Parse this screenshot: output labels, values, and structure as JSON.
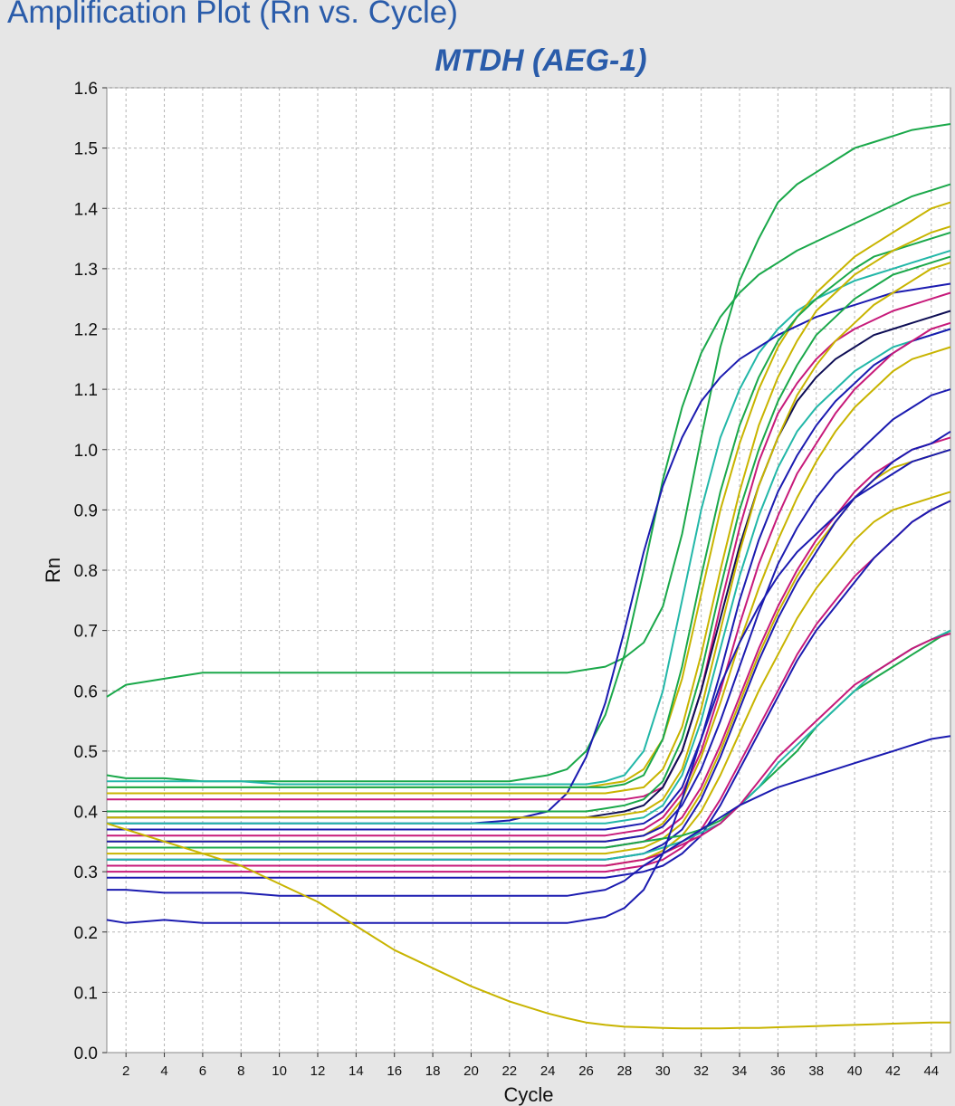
{
  "window": {
    "title": "Amplification Plot (Rn vs. Cycle)"
  },
  "chart_data": {
    "type": "line",
    "title": "MTDH (AEG-1)",
    "xlabel": "Cycle",
    "ylabel": "Rn",
    "xlim": [
      1,
      45
    ],
    "ylim": [
      0.0,
      1.6
    ],
    "x_ticks": [
      2,
      4,
      6,
      8,
      10,
      12,
      14,
      16,
      18,
      20,
      22,
      24,
      26,
      28,
      30,
      32,
      34,
      36,
      38,
      40,
      42,
      44
    ],
    "y_ticks": [
      0.0,
      0.1,
      0.2,
      0.3,
      0.4,
      0.5,
      0.6,
      0.7,
      0.8,
      0.9,
      1.0,
      1.1,
      1.2,
      1.3,
      1.4,
      1.5,
      1.6
    ],
    "grid": true,
    "legend": "none",
    "x": [
      1,
      2,
      4,
      6,
      8,
      10,
      12,
      14,
      16,
      18,
      20,
      22,
      24,
      25,
      26,
      27,
      28,
      29,
      30,
      31,
      32,
      33,
      34,
      35,
      36,
      37,
      38,
      39,
      40,
      41,
      42,
      43,
      44,
      45
    ],
    "series": [
      {
        "color": "#1aa84a",
        "values": [
          0.59,
          0.61,
          0.62,
          0.63,
          0.63,
          0.63,
          0.63,
          0.63,
          0.63,
          0.63,
          0.63,
          0.63,
          0.63,
          0.63,
          0.635,
          0.64,
          0.655,
          0.68,
          0.74,
          0.86,
          1.02,
          1.17,
          1.28,
          1.35,
          1.41,
          1.44,
          1.46,
          1.48,
          1.5,
          1.51,
          1.52,
          1.53,
          1.535,
          1.54
        ]
      },
      {
        "color": "#1aa84a",
        "values": [
          0.46,
          0.455,
          0.455,
          0.45,
          0.45,
          0.45,
          0.45,
          0.45,
          0.45,
          0.45,
          0.45,
          0.45,
          0.46,
          0.47,
          0.5,
          0.56,
          0.66,
          0.8,
          0.95,
          1.07,
          1.16,
          1.22,
          1.26,
          1.29,
          1.31,
          1.33,
          1.345,
          1.36,
          1.375,
          1.39,
          1.405,
          1.42,
          1.43,
          1.44
        ]
      },
      {
        "color": "#22b7a8",
        "values": [
          0.45,
          0.45,
          0.45,
          0.45,
          0.45,
          0.445,
          0.445,
          0.445,
          0.445,
          0.445,
          0.445,
          0.445,
          0.445,
          0.445,
          0.445,
          0.45,
          0.46,
          0.5,
          0.6,
          0.75,
          0.9,
          1.02,
          1.1,
          1.16,
          1.2,
          1.23,
          1.25,
          1.265,
          1.28,
          1.29,
          1.3,
          1.31,
          1.32,
          1.33
        ]
      },
      {
        "color": "#c8b400",
        "values": [
          0.44,
          0.44,
          0.44,
          0.44,
          0.44,
          0.44,
          0.44,
          0.44,
          0.44,
          0.44,
          0.44,
          0.44,
          0.44,
          0.44,
          0.44,
          0.445,
          0.45,
          0.47,
          0.52,
          0.62,
          0.76,
          0.9,
          1.01,
          1.1,
          1.17,
          1.22,
          1.26,
          1.29,
          1.32,
          1.34,
          1.36,
          1.38,
          1.4,
          1.41
        ]
      },
      {
        "color": "#1b1bb0",
        "values": [
          0.38,
          0.38,
          0.38,
          0.38,
          0.38,
          0.38,
          0.38,
          0.38,
          0.38,
          0.38,
          0.38,
          0.385,
          0.4,
          0.43,
          0.49,
          0.58,
          0.7,
          0.83,
          0.94,
          1.02,
          1.08,
          1.12,
          1.15,
          1.17,
          1.19,
          1.205,
          1.22,
          1.23,
          1.24,
          1.25,
          1.26,
          1.265,
          1.27,
          1.275
        ]
      },
      {
        "color": "#1aa84a",
        "values": [
          0.44,
          0.44,
          0.44,
          0.44,
          0.44,
          0.44,
          0.44,
          0.44,
          0.44,
          0.44,
          0.44,
          0.44,
          0.44,
          0.44,
          0.44,
          0.44,
          0.445,
          0.46,
          0.52,
          0.64,
          0.79,
          0.93,
          1.04,
          1.12,
          1.18,
          1.22,
          1.25,
          1.275,
          1.3,
          1.32,
          1.33,
          1.34,
          1.35,
          1.36
        ]
      },
      {
        "color": "#c8b400",
        "values": [
          0.43,
          0.43,
          0.43,
          0.43,
          0.43,
          0.43,
          0.43,
          0.43,
          0.43,
          0.43,
          0.43,
          0.43,
          0.43,
          0.43,
          0.43,
          0.43,
          0.435,
          0.44,
          0.47,
          0.54,
          0.66,
          0.8,
          0.93,
          1.04,
          1.12,
          1.18,
          1.23,
          1.26,
          1.29,
          1.31,
          1.33,
          1.345,
          1.36,
          1.37
        ]
      },
      {
        "color": "#c71a7a",
        "values": [
          0.42,
          0.42,
          0.42,
          0.42,
          0.42,
          0.42,
          0.42,
          0.42,
          0.42,
          0.42,
          0.42,
          0.42,
          0.42,
          0.42,
          0.42,
          0.42,
          0.42,
          0.425,
          0.44,
          0.5,
          0.6,
          0.74,
          0.87,
          0.98,
          1.06,
          1.11,
          1.15,
          1.18,
          1.2,
          1.215,
          1.23,
          1.24,
          1.25,
          1.26
        ]
      },
      {
        "color": "#1aa84a",
        "values": [
          0.4,
          0.4,
          0.4,
          0.4,
          0.4,
          0.4,
          0.4,
          0.4,
          0.4,
          0.4,
          0.4,
          0.4,
          0.4,
          0.4,
          0.4,
          0.405,
          0.41,
          0.42,
          0.45,
          0.52,
          0.63,
          0.77,
          0.9,
          1.0,
          1.08,
          1.14,
          1.19,
          1.22,
          1.25,
          1.27,
          1.29,
          1.3,
          1.31,
          1.32
        ]
      },
      {
        "color": "#0e0e55",
        "values": [
          0.39,
          0.39,
          0.39,
          0.39,
          0.39,
          0.39,
          0.39,
          0.39,
          0.39,
          0.39,
          0.39,
          0.39,
          0.39,
          0.39,
          0.39,
          0.395,
          0.4,
          0.41,
          0.44,
          0.5,
          0.6,
          0.72,
          0.84,
          0.94,
          1.02,
          1.08,
          1.12,
          1.15,
          1.17,
          1.19,
          1.2,
          1.21,
          1.22,
          1.23
        ]
      },
      {
        "color": "#c8b400",
        "values": [
          0.39,
          0.39,
          0.39,
          0.39,
          0.39,
          0.39,
          0.39,
          0.39,
          0.39,
          0.39,
          0.39,
          0.39,
          0.39,
          0.39,
          0.39,
          0.39,
          0.395,
          0.4,
          0.42,
          0.47,
          0.57,
          0.7,
          0.83,
          0.94,
          1.02,
          1.09,
          1.14,
          1.18,
          1.21,
          1.24,
          1.26,
          1.28,
          1.3,
          1.31
        ]
      },
      {
        "color": "#22b7a8",
        "values": [
          0.38,
          0.38,
          0.38,
          0.38,
          0.38,
          0.38,
          0.38,
          0.38,
          0.38,
          0.38,
          0.38,
          0.38,
          0.38,
          0.38,
          0.38,
          0.38,
          0.385,
          0.39,
          0.41,
          0.46,
          0.55,
          0.67,
          0.79,
          0.89,
          0.97,
          1.03,
          1.07,
          1.1,
          1.13,
          1.15,
          1.17,
          1.18,
          1.19,
          1.2
        ]
      },
      {
        "color": "#1b1bb0",
        "values": [
          0.37,
          0.37,
          0.37,
          0.37,
          0.37,
          0.37,
          0.37,
          0.37,
          0.37,
          0.37,
          0.37,
          0.37,
          0.37,
          0.37,
          0.37,
          0.37,
          0.375,
          0.38,
          0.4,
          0.44,
          0.52,
          0.63,
          0.75,
          0.85,
          0.93,
          0.99,
          1.04,
          1.08,
          1.11,
          1.14,
          1.16,
          1.18,
          1.19,
          1.2
        ]
      },
      {
        "color": "#c71a7a",
        "values": [
          0.36,
          0.36,
          0.36,
          0.36,
          0.36,
          0.36,
          0.36,
          0.36,
          0.36,
          0.36,
          0.36,
          0.36,
          0.36,
          0.36,
          0.36,
          0.36,
          0.365,
          0.37,
          0.39,
          0.43,
          0.5,
          0.6,
          0.71,
          0.81,
          0.89,
          0.96,
          1.01,
          1.06,
          1.1,
          1.13,
          1.16,
          1.18,
          1.2,
          1.21
        ]
      },
      {
        "color": "#c8b400",
        "values": [
          0.35,
          0.35,
          0.35,
          0.35,
          0.35,
          0.35,
          0.35,
          0.35,
          0.35,
          0.35,
          0.35,
          0.35,
          0.35,
          0.35,
          0.35,
          0.35,
          0.355,
          0.36,
          0.38,
          0.42,
          0.49,
          0.58,
          0.68,
          0.77,
          0.85,
          0.92,
          0.98,
          1.03,
          1.07,
          1.1,
          1.13,
          1.15,
          1.16,
          1.17
        ]
      },
      {
        "color": "#1b1bb0",
        "values": [
          0.35,
          0.35,
          0.35,
          0.35,
          0.35,
          0.35,
          0.35,
          0.35,
          0.35,
          0.35,
          0.35,
          0.35,
          0.35,
          0.35,
          0.35,
          0.35,
          0.355,
          0.36,
          0.375,
          0.41,
          0.47,
          0.55,
          0.64,
          0.73,
          0.81,
          0.87,
          0.92,
          0.96,
          0.99,
          1.02,
          1.05,
          1.07,
          1.09,
          1.1
        ]
      },
      {
        "color": "#c71a7a",
        "values": [
          0.34,
          0.34,
          0.34,
          0.34,
          0.34,
          0.34,
          0.34,
          0.34,
          0.34,
          0.34,
          0.34,
          0.34,
          0.34,
          0.34,
          0.34,
          0.34,
          0.345,
          0.35,
          0.365,
          0.39,
          0.44,
          0.51,
          0.59,
          0.67,
          0.74,
          0.8,
          0.85,
          0.89,
          0.93,
          0.96,
          0.98,
          1.0,
          1.01,
          1.02
        ]
      },
      {
        "color": "#c8b400",
        "values": [
          0.33,
          0.33,
          0.33,
          0.33,
          0.33,
          0.33,
          0.33,
          0.33,
          0.33,
          0.33,
          0.33,
          0.33,
          0.33,
          0.33,
          0.33,
          0.33,
          0.335,
          0.34,
          0.355,
          0.38,
          0.43,
          0.5,
          0.58,
          0.66,
          0.73,
          0.79,
          0.84,
          0.88,
          0.92,
          0.95,
          0.97,
          0.98,
          0.99,
          1.0
        ]
      },
      {
        "color": "#1b1bb0",
        "values": [
          0.32,
          0.32,
          0.32,
          0.32,
          0.32,
          0.32,
          0.32,
          0.32,
          0.32,
          0.32,
          0.32,
          0.32,
          0.32,
          0.32,
          0.32,
          0.32,
          0.325,
          0.33,
          0.345,
          0.37,
          0.42,
          0.49,
          0.57,
          0.65,
          0.72,
          0.78,
          0.83,
          0.88,
          0.92,
          0.95,
          0.98,
          1.0,
          1.01,
          1.03
        ]
      },
      {
        "color": "#c8b400",
        "values": [
          0.31,
          0.31,
          0.31,
          0.31,
          0.31,
          0.31,
          0.31,
          0.31,
          0.31,
          0.31,
          0.31,
          0.31,
          0.31,
          0.31,
          0.31,
          0.31,
          0.315,
          0.32,
          0.335,
          0.36,
          0.4,
          0.46,
          0.53,
          0.6,
          0.66,
          0.72,
          0.77,
          0.81,
          0.85,
          0.88,
          0.9,
          0.91,
          0.92,
          0.93
        ]
      },
      {
        "color": "#c71a7a",
        "values": [
          0.3,
          0.3,
          0.3,
          0.3,
          0.3,
          0.3,
          0.3,
          0.3,
          0.3,
          0.3,
          0.3,
          0.3,
          0.3,
          0.3,
          0.3,
          0.3,
          0.305,
          0.31,
          0.32,
          0.34,
          0.37,
          0.42,
          0.48,
          0.54,
          0.6,
          0.66,
          0.71,
          0.75,
          0.79,
          0.82,
          0.85,
          0.88,
          0.9,
          0.915
        ]
      },
      {
        "color": "#1b1bb0",
        "values": [
          0.29,
          0.29,
          0.29,
          0.29,
          0.29,
          0.29,
          0.29,
          0.29,
          0.29,
          0.29,
          0.29,
          0.29,
          0.29,
          0.29,
          0.29,
          0.29,
          0.295,
          0.3,
          0.31,
          0.33,
          0.36,
          0.41,
          0.47,
          0.53,
          0.59,
          0.65,
          0.7,
          0.74,
          0.78,
          0.82,
          0.85,
          0.88,
          0.9,
          0.915
        ]
      },
      {
        "color": "#1aa84a",
        "values": [
          0.34,
          0.34,
          0.34,
          0.34,
          0.34,
          0.34,
          0.34,
          0.34,
          0.34,
          0.34,
          0.34,
          0.34,
          0.34,
          0.34,
          0.34,
          0.34,
          0.345,
          0.35,
          0.355,
          0.36,
          0.37,
          0.385,
          0.41,
          0.44,
          0.47,
          0.5,
          0.54,
          0.57,
          0.6,
          0.62,
          0.64,
          0.66,
          0.68,
          0.7
        ]
      },
      {
        "color": "#22b7a8",
        "values": [
          0.32,
          0.32,
          0.32,
          0.32,
          0.32,
          0.32,
          0.32,
          0.32,
          0.32,
          0.32,
          0.32,
          0.32,
          0.32,
          0.32,
          0.32,
          0.32,
          0.325,
          0.33,
          0.34,
          0.35,
          0.365,
          0.38,
          0.41,
          0.44,
          0.48,
          0.51,
          0.54,
          0.57,
          0.6,
          0.63,
          0.65,
          0.67,
          0.685,
          0.7
        ]
      },
      {
        "color": "#c71a7a",
        "values": [
          0.31,
          0.31,
          0.31,
          0.31,
          0.31,
          0.31,
          0.31,
          0.31,
          0.31,
          0.31,
          0.31,
          0.31,
          0.31,
          0.31,
          0.31,
          0.31,
          0.315,
          0.32,
          0.33,
          0.345,
          0.36,
          0.38,
          0.41,
          0.45,
          0.49,
          0.52,
          0.55,
          0.58,
          0.61,
          0.63,
          0.65,
          0.67,
          0.685,
          0.695
        ]
      },
      {
        "color": "#1b1bb0",
        "values": [
          0.27,
          0.27,
          0.265,
          0.265,
          0.265,
          0.26,
          0.26,
          0.26,
          0.26,
          0.26,
          0.26,
          0.26,
          0.26,
          0.26,
          0.265,
          0.27,
          0.285,
          0.31,
          0.33,
          0.35,
          0.37,
          0.39,
          0.41,
          0.425,
          0.44,
          0.45,
          0.46,
          0.47,
          0.48,
          0.49,
          0.5,
          0.51,
          0.52,
          0.525
        ]
      },
      {
        "color": "#1b1bb0",
        "values": [
          0.22,
          0.215,
          0.22,
          0.215,
          0.215,
          0.215,
          0.215,
          0.215,
          0.215,
          0.215,
          0.215,
          0.215,
          0.215,
          0.215,
          0.22,
          0.225,
          0.24,
          0.27,
          0.33,
          0.42,
          0.52,
          0.61,
          0.68,
          0.74,
          0.79,
          0.83,
          0.86,
          0.89,
          0.92,
          0.94,
          0.96,
          0.98,
          0.99,
          1.0
        ]
      },
      {
        "color": "#c8b400",
        "values": [
          0.38,
          0.37,
          0.35,
          0.33,
          0.31,
          0.28,
          0.25,
          0.21,
          0.17,
          0.14,
          0.11,
          0.085,
          0.065,
          0.057,
          0.05,
          0.046,
          0.043,
          0.042,
          0.041,
          0.04,
          0.04,
          0.04,
          0.041,
          0.041,
          0.042,
          0.043,
          0.044,
          0.045,
          0.046,
          0.047,
          0.048,
          0.049,
          0.05,
          0.05
        ]
      }
    ]
  }
}
